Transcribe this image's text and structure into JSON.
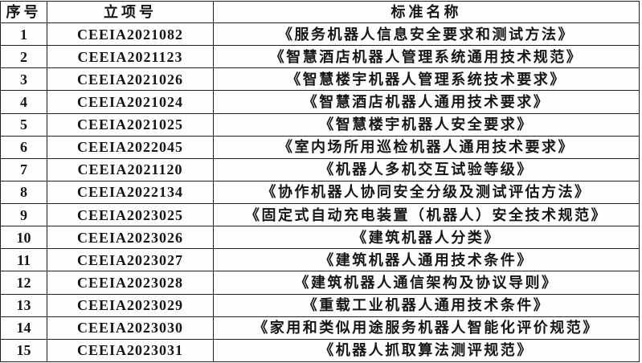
{
  "table": {
    "columns": [
      "序号",
      "立项号",
      "标准名称"
    ],
    "rows": [
      {
        "no": "1",
        "project_id": "CEEIA2021082",
        "standard_name": "《服务机器人信息安全要求和测试方法》"
      },
      {
        "no": "2",
        "project_id": "CEEIA2021123",
        "standard_name": "《智慧酒店机器人管理系统通用技术规范》"
      },
      {
        "no": "3",
        "project_id": "CEEIA2021026",
        "standard_name": "《智慧楼宇机器人管理系统技术要求》"
      },
      {
        "no": "4",
        "project_id": "CEEIA2021024",
        "standard_name": "《智慧酒店机器人通用技术要求》"
      },
      {
        "no": "5",
        "project_id": "CEEIA2021025",
        "standard_name": "《智慧楼宇机器人安全要求》"
      },
      {
        "no": "6",
        "project_id": "CEEIA2022045",
        "standard_name": "《室内场所用巡检机器人通用技术要求》"
      },
      {
        "no": "7",
        "project_id": "CEEIA2021120",
        "standard_name": "《机器人多机交互试验等级》"
      },
      {
        "no": "8",
        "project_id": "CEEIA2022134",
        "standard_name": "《协作机器人协同安全分级及测试评估方法》"
      },
      {
        "no": "9",
        "project_id": "CEEIA2023025",
        "standard_name": "《固定式自动充电装置（机器人）安全技术规范》"
      },
      {
        "no": "10",
        "project_id": "CEEIA2023026",
        "standard_name": "《建筑机器人分类》"
      },
      {
        "no": "11",
        "project_id": "CEEIA2023027",
        "standard_name": "《建筑机器人通用技术条件》"
      },
      {
        "no": "12",
        "project_id": "CEEIA2023028",
        "standard_name": "《建筑机器人通信架构及协议导则》"
      },
      {
        "no": "13",
        "project_id": "CEEIA2023029",
        "standard_name": "《重载工业机器人通用技术条件》"
      },
      {
        "no": "14",
        "project_id": "CEEIA2023030",
        "standard_name": "《家用和类似用途服务机器人智能化评价规范》"
      },
      {
        "no": "15",
        "project_id": "CEEIA2023031",
        "standard_name": "《机器人抓取算法测评规范》"
      }
    ],
    "colors": {
      "border": "#1f1f1f",
      "text": "#161616",
      "background": "#fefefe"
    }
  }
}
